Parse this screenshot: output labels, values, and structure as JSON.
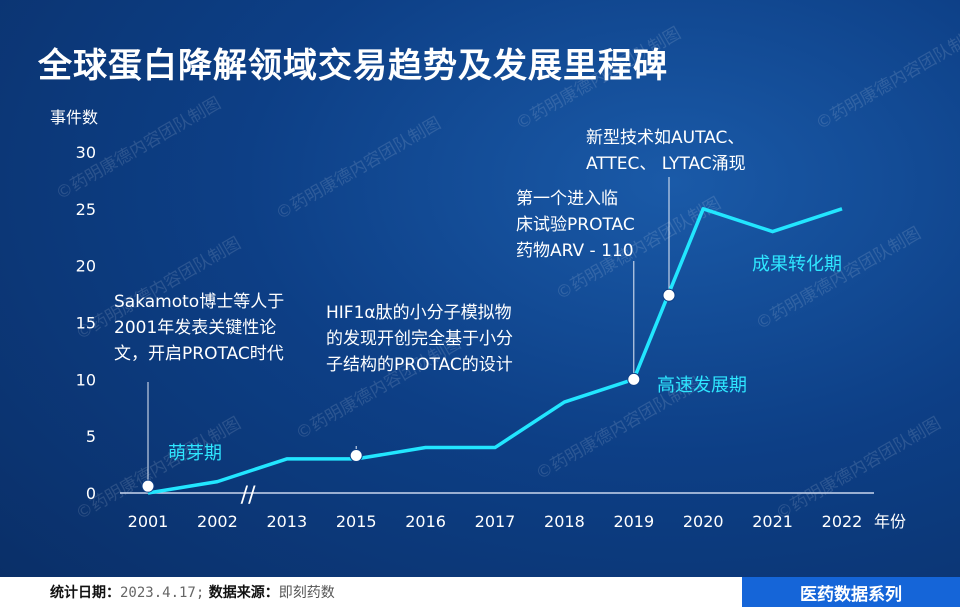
{
  "title": "全球蛋白降解领域交易趋势及发展里程碑",
  "watermark": "©药明康德内容团队制图",
  "chart_data": {
    "type": "line",
    "ylabel": "事件数",
    "xlabel": "年份",
    "ylim": [
      0,
      30
    ],
    "yticks": [
      0,
      5,
      10,
      15,
      20,
      25,
      30
    ],
    "categories": [
      "2001",
      "2002",
      "2013",
      "2015",
      "2016",
      "2017",
      "2018",
      "2019",
      "2020",
      "2021",
      "2022"
    ],
    "values": [
      0,
      1,
      3,
      3,
      4,
      4,
      8,
      10,
      25,
      23,
      25
    ],
    "axis_break_between": [
      "2002",
      "2013"
    ],
    "axis_break_symbol": "//",
    "line_color": "#22e6ff",
    "milestones": [
      {
        "x": "2001",
        "y": 0.6,
        "lines": [
          "Sakamoto博士等人于",
          "2001年发表关键性论",
          "文，开启PROTAC时代"
        ]
      },
      {
        "x": "2015",
        "y": 3.3,
        "lines": [
          "HIF1α肽的小分子模拟物",
          "的发现开创完全基于小分",
          "子结构的PROTAC的设计"
        ]
      },
      {
        "x": "2019",
        "y": 10,
        "lines": [
          "第一个进入临",
          "床试验PROTAC",
          "药物ARV - 110"
        ]
      },
      {
        "x_between": [
          "2019",
          "2020"
        ],
        "y": 17.4,
        "lines": [
          "新型技术如AUTAC、",
          "ATTEC、 LYTAC涌现"
        ]
      }
    ],
    "phases": [
      {
        "label": "萌芽期",
        "color": "#2ee6ff"
      },
      {
        "label": "高速发展期",
        "color": "#2ee6ff"
      },
      {
        "label": "成果转化期",
        "color": "#2ee6ff"
      }
    ]
  },
  "footer": {
    "date_label": "统计日期：",
    "date_value": "2023.4.17;",
    "source_label": "数据来源：",
    "source_value": "即刻药数",
    "series": "医药数据系列"
  }
}
